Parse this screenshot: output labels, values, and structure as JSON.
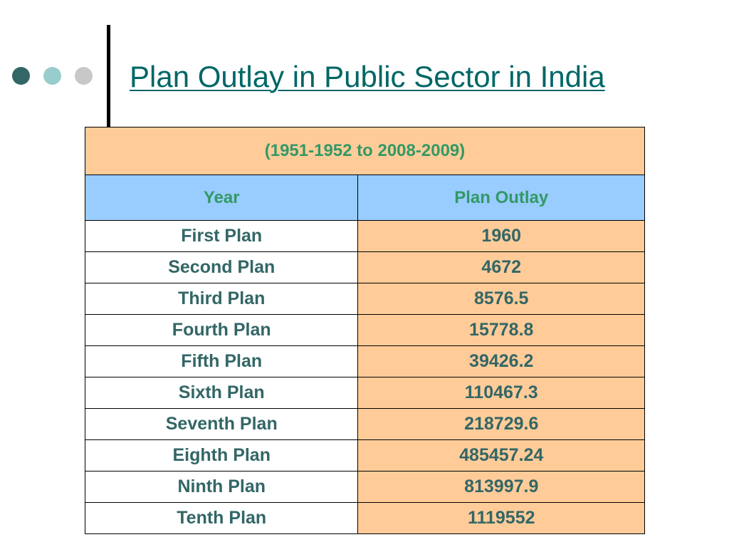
{
  "slide": {
    "title": "Plan Outlay in Public Sector in India"
  },
  "colors": {
    "dot_dark": "#336666",
    "dot_mid": "#99CCCC",
    "dot_light": "#C8C8C8",
    "title_text": "#006666",
    "table_text": "#336666",
    "green_text": "#339966",
    "peach_fill": "#FFCC99",
    "blue_fill": "#99CCFF",
    "white_fill": "#FFFFFF",
    "border": "#000000"
  },
  "chart_data": {
    "type": "table",
    "subtitle": "(1951-1952 to 2008-2009)",
    "columns": [
      "Year",
      "Plan Outlay"
    ],
    "rows": [
      [
        "First Plan",
        "1960"
      ],
      [
        "Second Plan",
        "4672"
      ],
      [
        "Third Plan",
        "8576.5"
      ],
      [
        "Fourth Plan",
        "15778.8"
      ],
      [
        "Fifth Plan",
        "39426.2"
      ],
      [
        "Sixth Plan",
        "110467.3"
      ],
      [
        "Seventh Plan",
        "218729.6"
      ],
      [
        "Eighth Plan",
        "485457.24"
      ],
      [
        "Ninth Plan",
        "813997.9"
      ],
      [
        "Tenth Plan",
        "1119552"
      ]
    ]
  }
}
